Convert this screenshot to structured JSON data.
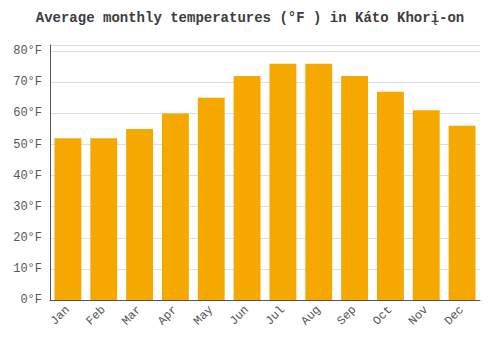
{
  "chart_data": {
    "type": "bar",
    "title": "Average monthly temperatures (°F ) in Káto Khorį-on",
    "categories": [
      "Jan",
      "Feb",
      "Mar",
      "Apr",
      "May",
      "Jun",
      "Jul",
      "Aug",
      "Sep",
      "Oct",
      "Nov",
      "Dec"
    ],
    "values": [
      52,
      52,
      55,
      60,
      65,
      72,
      76,
      76,
      72,
      67,
      61,
      56
    ],
    "color": "#F5A800",
    "ylim": [
      0,
      82
    ],
    "yticks": [
      {
        "value": 0,
        "label": "0°F"
      },
      {
        "value": 10,
        "label": "10°F"
      },
      {
        "value": 20,
        "label": "20°F"
      },
      {
        "value": 30,
        "label": "30°F"
      },
      {
        "value": 40,
        "label": "40°F"
      },
      {
        "value": 50,
        "label": "50°F"
      },
      {
        "value": 60,
        "label": "60°F"
      },
      {
        "value": 70,
        "label": "70°F"
      },
      {
        "value": 80,
        "label": "80°F"
      }
    ],
    "grid": true
  }
}
